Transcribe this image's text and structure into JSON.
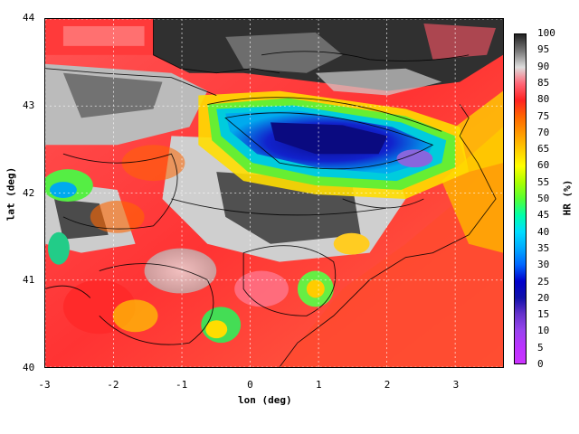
{
  "map": {
    "x_label": "lon (deg)",
    "y_label": "lat (deg)",
    "x_ticks": [
      "-3",
      "-2",
      "-1",
      "0",
      "1",
      "2",
      "3"
    ],
    "y_ticks": [
      "40",
      "41",
      "42",
      "43",
      "44"
    ],
    "x_range": [
      -3,
      3.7
    ],
    "y_range": [
      40,
      44
    ],
    "grid": "dashed"
  },
  "colorbar": {
    "label": "HR (%)",
    "ticks": [
      "100",
      "95",
      "90",
      "85",
      "80",
      "75",
      "70",
      "65",
      "60",
      "55",
      "50",
      "45",
      "40",
      "35",
      "30",
      "25",
      "20",
      "15",
      "10",
      "5",
      "0"
    ],
    "range": [
      0,
      100
    ],
    "colors": [
      "#222222",
      "#777777",
      "#dddddd",
      "#ff6677",
      "#ff2222",
      "#ff6600",
      "#ff9900",
      "#ffcc00",
      "#ffff00",
      "#aaff00",
      "#55ff33",
      "#00ffaa",
      "#00ddff",
      "#00aaff",
      "#0066ff",
      "#0000cc",
      "#1111aa",
      "#6633cc",
      "#9944ee",
      "#bb33ff",
      "#cc33ff"
    ]
  }
}
